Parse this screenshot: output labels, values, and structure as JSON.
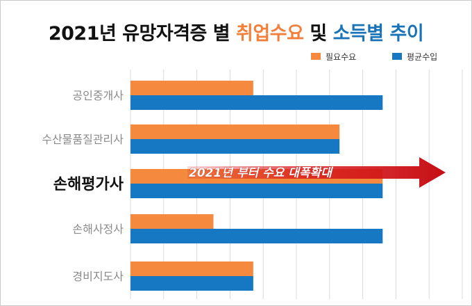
{
  "title": {
    "part1": "2021년 유망자격증 별 ",
    "part2": "취업수요",
    "part3": " 및 ",
    "part4": "소득별 추이"
  },
  "legend": {
    "item1": "필요수요",
    "item2": "평균수입"
  },
  "colors": {
    "demand": "#f58a3e",
    "income": "#1677c2",
    "arrow": "#d8141a",
    "grid": "#d9d9d9"
  },
  "annotation": "2021년 부터 수요 대폭확대",
  "chart_data": {
    "type": "bar",
    "orientation": "horizontal",
    "categories": [
      "공인중개사",
      "수산물품질관리사",
      "손해평가사",
      "손해사정사",
      "경비지도사"
    ],
    "highlighted_category": "손해평가사",
    "series": [
      {
        "name": "필요수요",
        "values": [
          3.7,
          6.3,
          7.6,
          2.5,
          3.7
        ]
      },
      {
        "name": "평균수입",
        "values": [
          7.6,
          6.3,
          7.6,
          7.6,
          3.7
        ]
      }
    ],
    "xlim": [
      0,
      10
    ],
    "grid": true,
    "legend_position": "top-right"
  }
}
